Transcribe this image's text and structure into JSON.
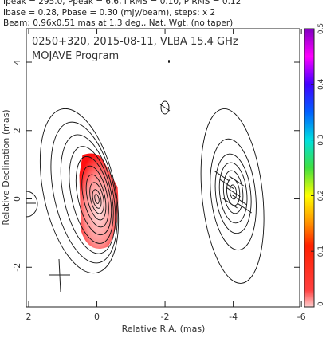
{
  "chart_data": {
    "type": "contour",
    "header": [
      "Ipeak = 295.0, Ppeak = 6.6, I RMS = 0.10, P RMS = 0.12",
      "Ibase = 0.28, Pbase = 0.30 (mJy/beam), steps: x 2",
      "Beam: 0.96x0.51 mas at 1.3 deg., Nat. Wgt. (no taper)"
    ],
    "title": "0250+320, 2015-08-11, VLBA 15.4 GHz",
    "subtitle": "MOJAVE Program",
    "x_label": "Relative R.A. (mas)",
    "y_label": "Relative Declination (mas)",
    "xlim": [
      2.07,
      -5.95
    ],
    "xticks": [
      2,
      0,
      -2,
      -4,
      -6
    ],
    "ylim": [
      -3.16,
      4.98
    ],
    "yticks": [
      -2,
      0,
      2,
      4
    ],
    "components": {
      "x": [
        0,
        -4
      ],
      "y": [
        0,
        0.2
      ]
    },
    "colorbar": {
      "lim": [
        0,
        0.5
      ],
      "ticks": [
        0,
        0.1,
        0.2,
        0.3,
        0.4,
        0.5
      ]
    }
  }
}
